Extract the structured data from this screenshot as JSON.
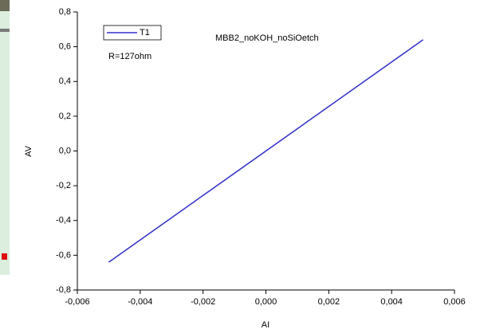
{
  "chart_data": {
    "type": "line",
    "xlabel": "AI",
    "ylabel": "AV",
    "annotations": [
      "MBB2_noKOH_noSiOetch",
      "R=127ohm"
    ],
    "x": [
      -0.005,
      0.005
    ],
    "series": [
      {
        "name": "T1",
        "color": "#3030c8",
        "values": [
          -0.64,
          0.64
        ]
      }
    ],
    "xlim": [
      -0.006,
      0.006
    ],
    "xticks": [
      {
        "value": -0.006,
        "label": "-0,006"
      },
      {
        "value": -0.004,
        "label": "-0,004"
      },
      {
        "value": -0.002,
        "label": "-0,002"
      },
      {
        "value": 0,
        "label": "0,000"
      },
      {
        "value": 0.002,
        "label": "0,002"
      },
      {
        "value": 0.004,
        "label": "0,004"
      },
      {
        "value": 0.006,
        "label": "0,006"
      }
    ],
    "ylim": [
      -0.8,
      0.8
    ],
    "yticks": [
      {
        "value": -0.8,
        "label": "-0,8"
      },
      {
        "value": -0.6,
        "label": "-0,6"
      },
      {
        "value": -0.4,
        "label": "-0,4"
      },
      {
        "value": -0.2,
        "label": "-0,2"
      },
      {
        "value": 0,
        "label": "0,0"
      },
      {
        "value": 0.2,
        "label": "0,2"
      },
      {
        "value": 0.4,
        "label": "0,4"
      },
      {
        "value": 0.6,
        "label": "0,6"
      },
      {
        "value": 0.8,
        "label": "0,8"
      }
    ],
    "grid": false
  }
}
